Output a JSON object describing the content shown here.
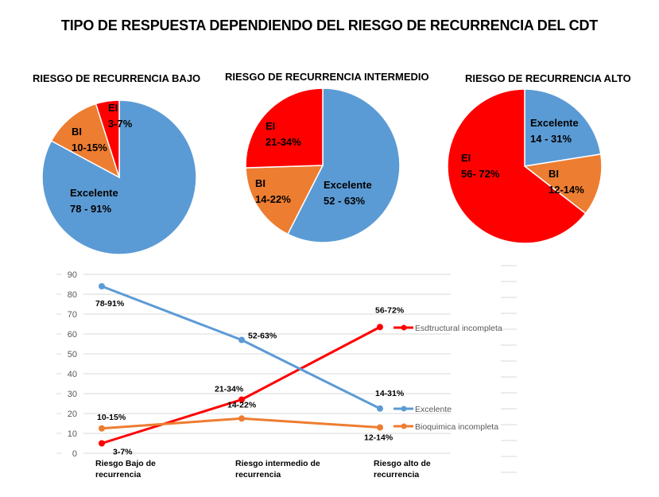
{
  "title": "TIPO DE RESPUESTA DEPENDIENDO DEL RIESGO DE RECURRENCIA DEL CDT",
  "colors": {
    "excelente": "#5B9BD5",
    "bioquimica": "#ED7D31",
    "estructural": "#FF0000",
    "grid": "#D9D9D9",
    "tick_text": "#595959"
  },
  "chart_data": [
    {
      "type": "pie",
      "title": "RIESGO DE RECURRENCIA BAJO",
      "slices": [
        {
          "name": "Excelente",
          "label_line1": "Excelente",
          "label_line2": "78 - 91%",
          "value": 84.5,
          "color_key": "excelente"
        },
        {
          "name": "BI",
          "label_line1": "BI",
          "label_line2": "10-15%",
          "value": 12.5,
          "color_key": "bioquimica"
        },
        {
          "name": "EI",
          "label_line1": "EI",
          "label_line2": "3-7%",
          "value": 5,
          "color_key": "estructural"
        }
      ]
    },
    {
      "type": "pie",
      "title": "RIESGO DE RECURRENCIA INTERMEDIO",
      "slices": [
        {
          "name": "Excelente",
          "label_line1": "Excelente",
          "label_line2": "52 - 63%",
          "value": 57.5,
          "color_key": "excelente"
        },
        {
          "name": "BI",
          "label_line1": "BI",
          "label_line2": "14-22%",
          "value": 17,
          "color_key": "bioquimica"
        },
        {
          "name": "EI",
          "label_line1": "EI",
          "label_line2": "21-34%",
          "value": 25.5,
          "color_key": "estructural"
        }
      ]
    },
    {
      "type": "pie",
      "title": "RIESGO DE RECURRENCIA ALTO",
      "slices": [
        {
          "name": "Excelente",
          "label_line1": "Excelente",
          "label_line2": "14 - 31%",
          "value": 22.5,
          "color_key": "excelente"
        },
        {
          "name": "BI",
          "label_line1": "BI",
          "label_line2": "12-14%",
          "value": 13,
          "color_key": "bioquimica"
        },
        {
          "name": "EI",
          "label_line1": "EI",
          "label_line2": "56- 72%",
          "value": 64.5,
          "color_key": "estructural"
        }
      ]
    },
    {
      "type": "line",
      "title": "",
      "categories": [
        [
          "Riesgo Bajo de",
          "recurrencia"
        ],
        [
          "Riesgo intermedio de",
          "recurrencia"
        ],
        [
          "Riesgo alto de",
          "recurrencia"
        ]
      ],
      "ylim": [
        0,
        90
      ],
      "yticks": [
        0,
        10,
        20,
        30,
        40,
        50,
        60,
        70,
        80,
        90
      ],
      "grid": true,
      "legend_position": "right",
      "series": [
        {
          "name": "Esdtructural incompleta",
          "color_key": "estructural",
          "values": [
            5,
            27,
            63.5
          ],
          "labels": [
            "3-7%",
            "21-34%",
            "56-72%"
          ]
        },
        {
          "name": "Excelente",
          "color_key": "excelente",
          "values": [
            84,
            57,
            22.5
          ],
          "labels": [
            "78-91%",
            "52-63%",
            "14-31%"
          ]
        },
        {
          "name": "Bioquimica incompleta",
          "color_key": "bioquimica",
          "values": [
            12.5,
            17.5,
            13
          ],
          "labels": [
            "10-15%",
            "14-22%",
            "12-14%"
          ]
        }
      ]
    }
  ]
}
